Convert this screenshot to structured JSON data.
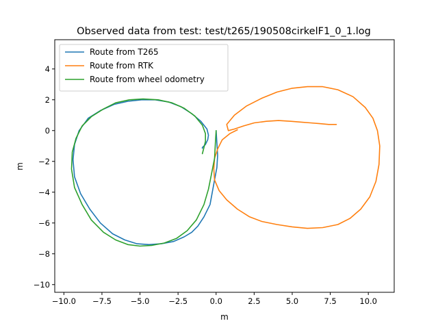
{
  "chart_data": {
    "type": "line",
    "title": "Observed data from test: test/t265/190508cirkelF1_0_1.log",
    "xlabel": "m",
    "ylabel": "m",
    "xlim": [
      -10.6,
      11.7
    ],
    "ylim": [
      -10.5,
      5.9
    ],
    "xticks": [
      -10.0,
      -7.5,
      -5.0,
      -2.5,
      0.0,
      2.5,
      5.0,
      7.5,
      10.0
    ],
    "xtick_labels": [
      "−10.0",
      "−7.5",
      "−5.0",
      "−2.5",
      "0.0",
      "2.5",
      "5.0",
      "7.5",
      "10.0"
    ],
    "yticks": [
      -10,
      -8,
      -6,
      -4,
      -2,
      0,
      2,
      4
    ],
    "ytick_labels": [
      "−10",
      "−8",
      "−6",
      "−4",
      "−2",
      "0",
      "2",
      "4"
    ],
    "grid": false,
    "legend_position": "top-left",
    "colors": {
      "t265": "#1f77b4",
      "rtk": "#ff7f0e",
      "odo": "#2ca02c"
    },
    "series": [
      {
        "name": "Route from T265",
        "color": "#1f77b4",
        "x": [
          0.0,
          0.05,
          0.1,
          0.05,
          -0.1,
          -0.25,
          -0.4,
          -0.8,
          -1.2,
          -1.6,
          -2.1,
          -2.8,
          -3.6,
          -4.4,
          -5.2,
          -6.0,
          -6.8,
          -7.6,
          -8.3,
          -8.9,
          -9.3,
          -9.4,
          -9.3,
          -9.0,
          -8.4,
          -7.6,
          -6.7,
          -5.8,
          -4.9,
          -4.0,
          -3.1,
          -2.3,
          -1.6,
          -1.0,
          -0.6,
          -0.5,
          -0.55,
          -0.7,
          -0.8,
          -0.9,
          -0.9
        ],
        "y": [
          0.0,
          -0.8,
          -1.6,
          -2.4,
          -3.2,
          -4.0,
          -4.8,
          -5.6,
          -6.2,
          -6.6,
          -6.9,
          -7.2,
          -7.35,
          -7.4,
          -7.35,
          -7.1,
          -6.7,
          -6.0,
          -5.1,
          -4.1,
          -3.0,
          -1.9,
          -0.9,
          0.0,
          0.8,
          1.3,
          1.7,
          1.9,
          2.0,
          2.0,
          1.85,
          1.55,
          1.1,
          0.6,
          0.1,
          -0.3,
          -0.6,
          -0.9,
          -1.0,
          -1.1,
          -1.15
        ]
      },
      {
        "name": "Route from RTK",
        "color": "#ff7f0e",
        "x": [
          1.4,
          0.9,
          0.4,
          0.1,
          -0.1,
          -0.15,
          -0.1,
          0.2,
          0.7,
          1.4,
          2.2,
          3.0,
          4.0,
          5.0,
          6.0,
          7.0,
          8.0,
          8.8,
          9.5,
          10.1,
          10.5,
          10.7,
          10.75,
          10.6,
          10.3,
          9.8,
          9.0,
          8.0,
          7.0,
          6.0,
          5.0,
          4.0,
          3.0,
          2.0,
          1.2,
          0.7,
          0.8,
          1.2,
          1.8,
          2.5,
          3.3,
          4.1,
          4.9,
          5.6,
          6.2,
          6.8,
          7.4,
          7.9
        ],
        "y": [
          0.05,
          -0.2,
          -0.6,
          -1.2,
          -1.8,
          -2.5,
          -3.2,
          -3.9,
          -4.5,
          -5.1,
          -5.6,
          -5.9,
          -6.1,
          -6.25,
          -6.35,
          -6.3,
          -6.1,
          -5.7,
          -5.1,
          -4.3,
          -3.3,
          -2.2,
          -1.0,
          0.0,
          0.8,
          1.5,
          2.2,
          2.65,
          2.85,
          2.85,
          2.75,
          2.5,
          2.1,
          1.6,
          1.0,
          0.4,
          0.0,
          0.1,
          0.3,
          0.5,
          0.6,
          0.65,
          0.6,
          0.55,
          0.5,
          0.45,
          0.4,
          0.4
        ]
      },
      {
        "name": "Route from wheel odometry",
        "color": "#2ca02c",
        "x": [
          0.0,
          -0.05,
          -0.1,
          -0.3,
          -0.5,
          -0.8,
          -1.3,
          -1.9,
          -2.6,
          -3.4,
          -4.2,
          -5.0,
          -5.8,
          -6.6,
          -7.4,
          -8.2,
          -8.8,
          -9.3,
          -9.5,
          -9.45,
          -9.2,
          -8.8,
          -8.2,
          -7.4,
          -6.6,
          -5.7,
          -4.8,
          -3.8,
          -2.9,
          -2.1,
          -1.4,
          -0.9,
          -0.7,
          -0.7,
          -0.8,
          -0.9
        ],
        "y": [
          0.0,
          -0.8,
          -1.8,
          -2.8,
          -3.8,
          -4.8,
          -5.8,
          -6.5,
          -7.0,
          -7.3,
          -7.45,
          -7.5,
          -7.4,
          -7.1,
          -6.6,
          -5.8,
          -4.8,
          -3.7,
          -2.5,
          -1.4,
          -0.5,
          0.3,
          0.9,
          1.4,
          1.8,
          2.0,
          2.05,
          2.0,
          1.8,
          1.45,
          0.95,
          0.35,
          -0.2,
          -0.7,
          -1.1,
          -1.5
        ]
      }
    ]
  }
}
